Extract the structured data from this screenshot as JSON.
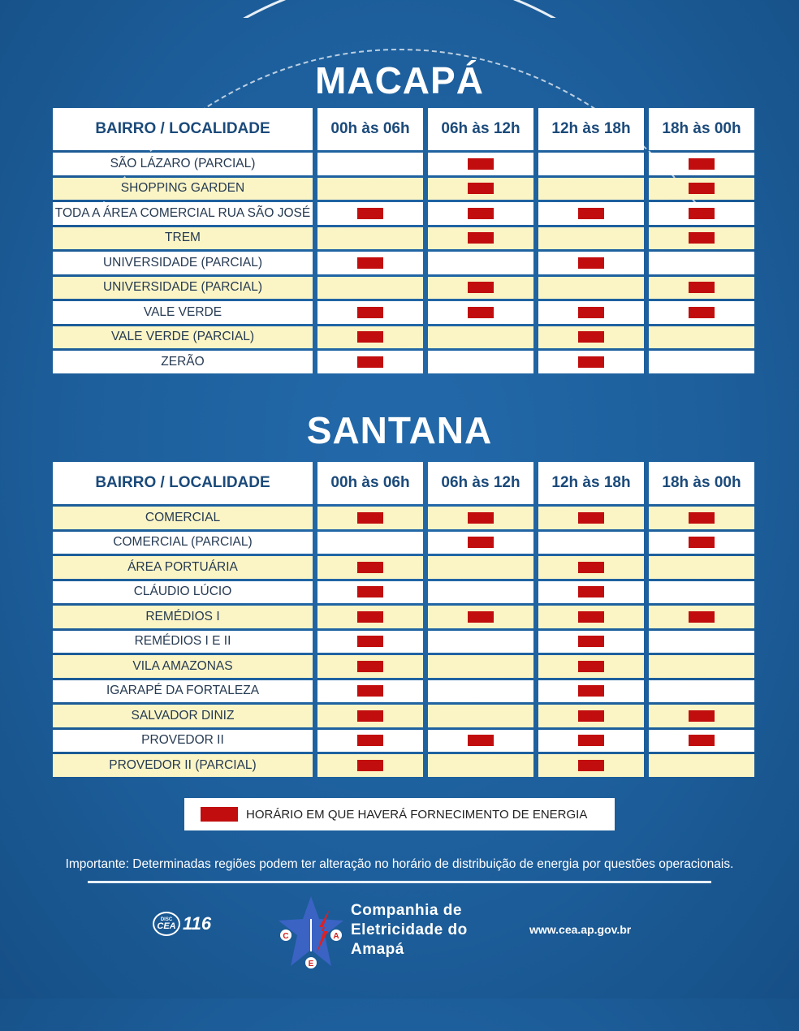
{
  "colors": {
    "background": "#1f62a0",
    "header_text": "#1b4a7a",
    "stripe": "#fbf5c6",
    "mark": "#c10d0d"
  },
  "columns": [
    "BAIRRO / LOCALIDADE",
    "00h às 06h",
    "06h às 12h",
    "12h às 18h",
    "18h às 00h"
  ],
  "sections": [
    {
      "title": "MACAPÁ",
      "first_row_striped": false,
      "rows": [
        {
          "name": "SÃO LÁZARO (PARCIAL)",
          "slots": [
            false,
            true,
            false,
            true
          ]
        },
        {
          "name": "SHOPPING GARDEN",
          "slots": [
            false,
            true,
            false,
            true
          ]
        },
        {
          "name": "TODA A ÁREA COMERCIAL RUA SÃO JOSÉ",
          "slots": [
            true,
            true,
            true,
            true
          ]
        },
        {
          "name": "TREM",
          "slots": [
            false,
            true,
            false,
            true
          ]
        },
        {
          "name": "UNIVERSIDADE (PARCIAL)",
          "slots": [
            true,
            false,
            true,
            false
          ]
        },
        {
          "name": "UNIVERSIDADE (PARCIAL)",
          "slots": [
            false,
            true,
            false,
            true
          ]
        },
        {
          "name": "VALE VERDE",
          "slots": [
            true,
            true,
            true,
            true
          ]
        },
        {
          "name": "VALE VERDE (PARCIAL)",
          "slots": [
            true,
            false,
            true,
            false
          ]
        },
        {
          "name": "ZERÃO",
          "slots": [
            true,
            false,
            true,
            false
          ]
        }
      ]
    },
    {
      "title": "SANTANA",
      "first_row_striped": true,
      "rows": [
        {
          "name": "COMERCIAL",
          "slots": [
            true,
            true,
            true,
            true
          ]
        },
        {
          "name": "COMERCIAL (PARCIAL)",
          "slots": [
            false,
            true,
            false,
            true
          ]
        },
        {
          "name": "ÁREA PORTUÁRIA",
          "slots": [
            true,
            false,
            true,
            false
          ]
        },
        {
          "name": "CLÁUDIO LÚCIO",
          "slots": [
            true,
            false,
            true,
            false
          ]
        },
        {
          "name": "REMÉDIOS I",
          "slots": [
            true,
            true,
            true,
            true
          ]
        },
        {
          "name": "REMÉDIOS I E II",
          "slots": [
            true,
            false,
            true,
            false
          ]
        },
        {
          "name": "VILA AMAZONAS",
          "slots": [
            true,
            false,
            true,
            false
          ]
        },
        {
          "name": "IGARAPÉ DA FORTALEZA",
          "slots": [
            true,
            false,
            true,
            false
          ]
        },
        {
          "name": "SALVADOR DINIZ",
          "slots": [
            true,
            false,
            true,
            true
          ]
        },
        {
          "name": "PROVEDOR II",
          "slots": [
            true,
            true,
            true,
            true
          ]
        },
        {
          "name": "PROVEDOR II (PARCIAL)",
          "slots": [
            true,
            false,
            true,
            false
          ]
        }
      ]
    }
  ],
  "legend": "HORÁRIO EM QUE HAVERÁ FORNECIMENTO DE ENERGIA",
  "note": "Importante: Determinadas regiões podem ter alteração no horário de distribuição de energia por questões operacionais.",
  "footer": {
    "hotline_brand": "CEA",
    "hotline_prefix": "DISC",
    "hotline": "116",
    "company_lines": [
      "Companhia de",
      "Eletricidade do",
      "Amapá"
    ],
    "logo_letters": [
      "C",
      "E",
      "A"
    ],
    "website": "www.cea.ap.gov.br"
  }
}
